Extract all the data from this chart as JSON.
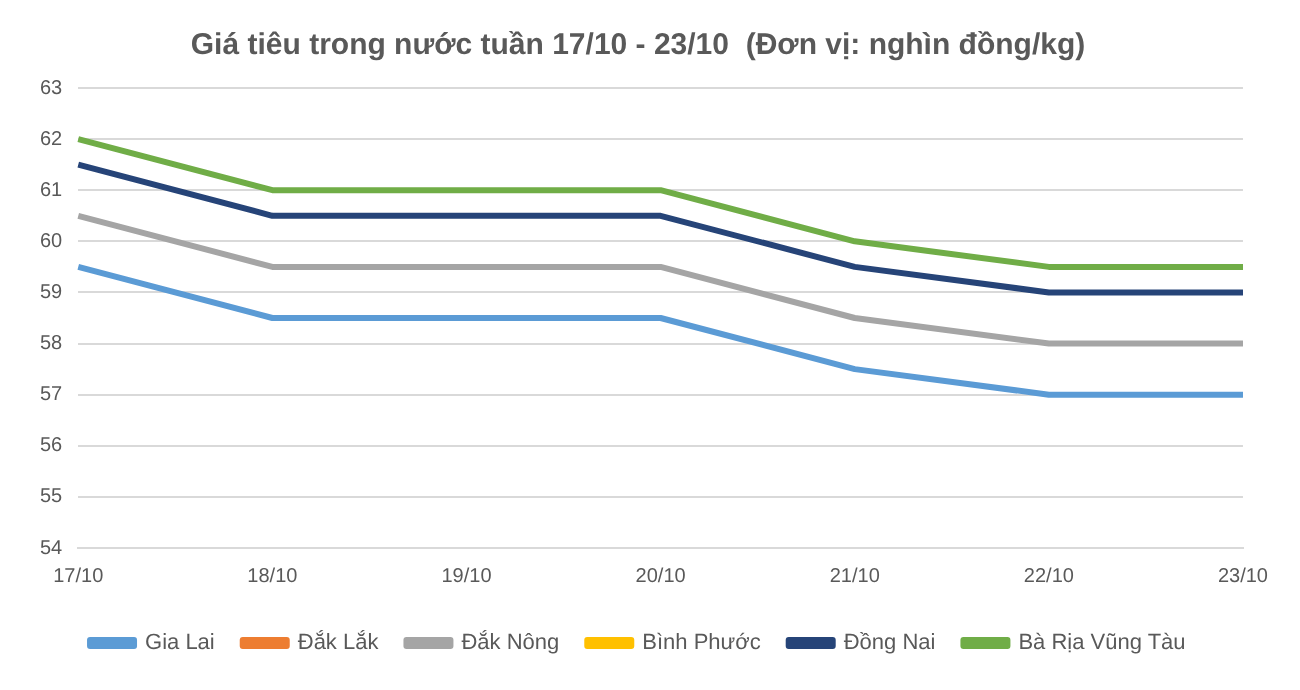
{
  "chart_data": {
    "type": "line",
    "title": "Giá tiêu trong nước tuần 17/10 - 23/10  (Đơn vị: nghìn đồng/kg)",
    "categories": [
      "17/10",
      "18/10",
      "19/10",
      "20/10",
      "21/10",
      "22/10",
      "23/10"
    ],
    "series": [
      {
        "name": "Gia Lai",
        "color": "#5b9bd5",
        "values": [
          59.5,
          58.5,
          58.5,
          58.5,
          57.5,
          57,
          57
        ]
      },
      {
        "name": "Đắk Lắk",
        "color": "#ed7d31",
        "values": [
          null,
          null,
          null,
          null,
          null,
          null,
          null
        ]
      },
      {
        "name": "Đắk Nông",
        "color": "#a5a5a5",
        "values": [
          60.5,
          59.5,
          59.5,
          59.5,
          58.5,
          58,
          58
        ]
      },
      {
        "name": "Bình Phước",
        "color": "#ffc000",
        "values": [
          null,
          null,
          null,
          null,
          null,
          null,
          null
        ]
      },
      {
        "name": "Đồng Nai",
        "color": "#264478",
        "values": [
          61.5,
          60.5,
          60.5,
          60.5,
          59.5,
          59,
          59
        ]
      },
      {
        "name": "Bà Rịa Vũng Tàu",
        "color": "#70ad47",
        "values": [
          62,
          61,
          61,
          61,
          60,
          59.5,
          59.5
        ]
      }
    ],
    "ylim": [
      54,
      63
    ],
    "yticks": [
      54,
      55,
      56,
      57,
      58,
      59,
      60,
      61,
      62,
      63
    ],
    "grid": "y",
    "legend": "bottom",
    "marker": "none",
    "line_style": "solid"
  }
}
